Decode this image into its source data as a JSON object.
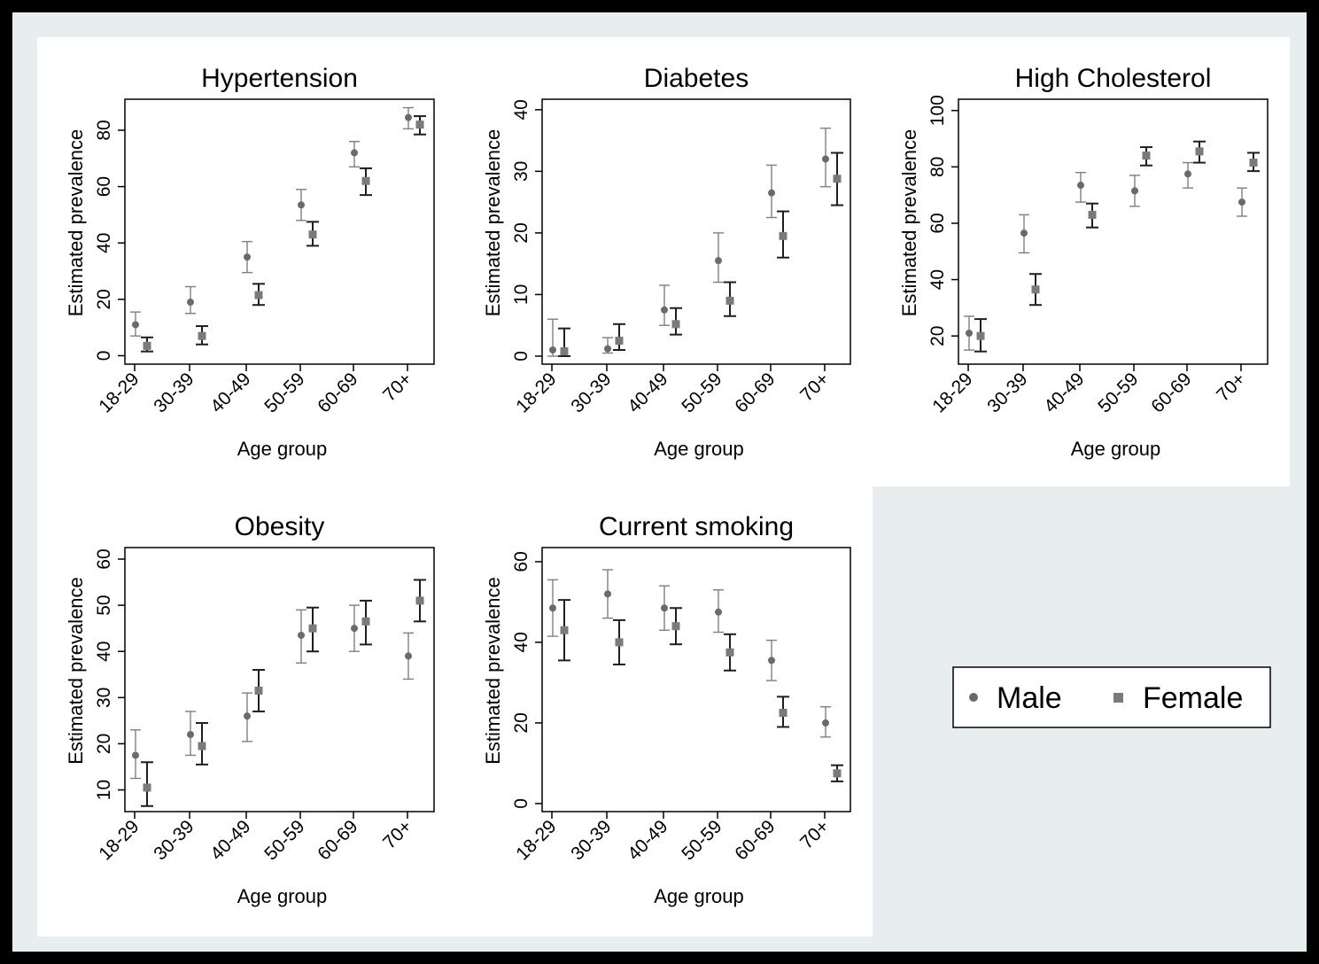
{
  "colors": {
    "male": "#7f7f7f",
    "female": "#1e1e1e",
    "male_marker": "#6a6a6a",
    "female_marker": "#7a7a7a",
    "plot_bg": "#ffffff",
    "outer_bg": "#e8eef0"
  },
  "legend": {
    "placement": "right",
    "items": [
      {
        "label": "Male",
        "marker": "circle"
      },
      {
        "label": "Female",
        "marker": "square"
      }
    ]
  },
  "chart_data": [
    {
      "type": "scatter",
      "title": "Hypertension",
      "xlabel": "Age group",
      "ylabel": "Estimated prevalence",
      "categories": [
        "18-29",
        "30-39",
        "40-49",
        "50-59",
        "60-69",
        "70+"
      ],
      "ylim": [
        -3,
        91
      ],
      "yticks": [
        0,
        20,
        40,
        60,
        80
      ],
      "series": [
        {
          "name": "Male",
          "values": [
            11,
            19,
            35,
            53.5,
            72,
            84.5
          ],
          "lower": [
            7,
            15,
            29.5,
            48,
            67,
            80.5
          ],
          "upper": [
            15.5,
            24.5,
            40.5,
            59,
            76,
            88
          ]
        },
        {
          "name": "Female",
          "values": [
            3.5,
            7,
            21.5,
            43,
            62,
            82
          ],
          "lower": [
            1.5,
            4,
            18,
            39,
            57,
            78.5
          ],
          "upper": [
            6.5,
            10.5,
            25.5,
            47.5,
            66.5,
            85
          ]
        }
      ]
    },
    {
      "type": "scatter",
      "title": "Diabetes",
      "xlabel": "Age group",
      "ylabel": "Estimated prevalence",
      "categories": [
        "18-29",
        "30-39",
        "40-49",
        "50-59",
        "60-69",
        "70+"
      ],
      "ylim": [
        -1.3,
        41.7
      ],
      "yticks": [
        0,
        10,
        20,
        30,
        40
      ],
      "series": [
        {
          "name": "Male",
          "values": [
            1,
            1.2,
            7.5,
            15.5,
            26.5,
            32
          ],
          "lower": [
            0,
            0.5,
            5,
            12,
            22.5,
            27.5
          ],
          "upper": [
            6,
            3,
            11.5,
            20,
            31,
            37
          ]
        },
        {
          "name": "Female",
          "values": [
            0.8,
            2.5,
            5.2,
            9,
            19.5,
            28.8
          ],
          "lower": [
            0,
            1,
            3.5,
            6.5,
            16,
            24.5
          ],
          "upper": [
            4.5,
            5.2,
            7.8,
            12,
            23.5,
            33
          ]
        }
      ]
    },
    {
      "type": "scatter",
      "title": "High Cholesterol",
      "xlabel": "Age group",
      "ylabel": "Estimated prevalence",
      "categories": [
        "18-29",
        "30-39",
        "40-49",
        "50-59",
        "60-69",
        "70+"
      ],
      "ylim": [
        10,
        104
      ],
      "yticks": [
        20,
        40,
        60,
        80,
        100
      ],
      "series": [
        {
          "name": "Male",
          "values": [
            21,
            56.5,
            73.5,
            71.5,
            77.5,
            67.5
          ],
          "lower": [
            15,
            49.5,
            67.5,
            66,
            72.5,
            62.5
          ],
          "upper": [
            27,
            63,
            78,
            77,
            81.5,
            72.5
          ]
        },
        {
          "name": "Female",
          "values": [
            20,
            36.5,
            63,
            84,
            85.5,
            81.5
          ],
          "lower": [
            14.5,
            31,
            58.5,
            80.5,
            81.5,
            78.5
          ],
          "upper": [
            26,
            42,
            67,
            87,
            89,
            85
          ]
        }
      ]
    },
    {
      "type": "scatter",
      "title": "Obesity",
      "xlabel": "Age group",
      "ylabel": "Estimated prevalence",
      "categories": [
        "18-29",
        "30-39",
        "40-49",
        "50-59",
        "60-69",
        "70+"
      ],
      "ylim": [
        5.3,
        62.5
      ],
      "yticks": [
        10,
        20,
        30,
        40,
        50,
        60
      ],
      "series": [
        {
          "name": "Male",
          "values": [
            17.5,
            22,
            26,
            43.5,
            45,
            39
          ],
          "lower": [
            12.5,
            17.5,
            20.5,
            37.5,
            40,
            34
          ],
          "upper": [
            23,
            27,
            31,
            49,
            50,
            44
          ]
        },
        {
          "name": "Female",
          "values": [
            10.5,
            19.5,
            31.5,
            45,
            46.5,
            51
          ],
          "lower": [
            6.5,
            15.5,
            27,
            40,
            41.5,
            46.5
          ],
          "upper": [
            16,
            24.5,
            36,
            49.5,
            51,
            55.5
          ]
        }
      ]
    },
    {
      "type": "scatter",
      "title": "Current smoking",
      "xlabel": "Age group",
      "ylabel": "Estimated prevalence",
      "categories": [
        "18-29",
        "30-39",
        "40-49",
        "50-59",
        "60-69",
        "70+"
      ],
      "ylim": [
        -2,
        63.5
      ],
      "yticks": [
        0,
        20,
        40,
        60
      ],
      "series": [
        {
          "name": "Male",
          "values": [
            48.5,
            52,
            48.5,
            47.5,
            35.5,
            20
          ],
          "lower": [
            41.5,
            46,
            43,
            42.5,
            30.5,
            16.5
          ],
          "upper": [
            55.5,
            58,
            54,
            53,
            40.5,
            24
          ]
        },
        {
          "name": "Female",
          "values": [
            43,
            40,
            44,
            37.5,
            22.5,
            7.5
          ],
          "lower": [
            35.5,
            34.5,
            39.5,
            33,
            19,
            5.5
          ],
          "upper": [
            50.5,
            45.5,
            48.5,
            42,
            26.5,
            9.5
          ]
        }
      ]
    }
  ]
}
